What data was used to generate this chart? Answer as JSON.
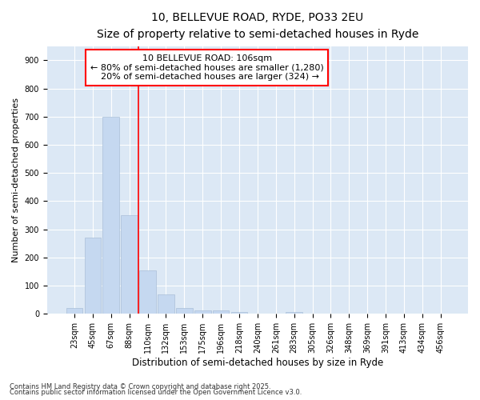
{
  "title1": "10, BELLEVUE ROAD, RYDE, PO33 2EU",
  "title2": "Size of property relative to semi-detached houses in Ryde",
  "xlabel": "Distribution of semi-detached houses by size in Ryde",
  "ylabel": "Number of semi-detached properties",
  "categories": [
    "23sqm",
    "45sqm",
    "67sqm",
    "88sqm",
    "110sqm",
    "132sqm",
    "153sqm",
    "175sqm",
    "196sqm",
    "218sqm",
    "240sqm",
    "261sqm",
    "283sqm",
    "305sqm",
    "326sqm",
    "348sqm",
    "369sqm",
    "391sqm",
    "413sqm",
    "434sqm",
    "456sqm"
  ],
  "values": [
    20,
    270,
    700,
    350,
    155,
    68,
    22,
    12,
    12,
    8,
    0,
    0,
    8,
    0,
    0,
    0,
    0,
    0,
    0,
    0,
    0
  ],
  "bar_color": "#c5d8f0",
  "bar_edge_color": "#aabfd8",
  "plot_bg_color": "#dce8f5",
  "fig_bg_color": "#ffffff",
  "vline_color": "red",
  "vline_x_index": 4,
  "annotation_text_line1": "10 BELLEVUE ROAD: 106sqm",
  "annotation_text_line2": "← 80% of semi-detached houses are smaller (1,280)",
  "annotation_text_line3": "  20% of semi-detached houses are larger (324) →",
  "annotation_box_color": "white",
  "annotation_box_edge": "red",
  "ylim": [
    0,
    950
  ],
  "yticks": [
    0,
    100,
    200,
    300,
    400,
    500,
    600,
    700,
    800,
    900
  ],
  "footer1": "Contains HM Land Registry data © Crown copyright and database right 2025.",
  "footer2": "Contains public sector information licensed under the Open Government Licence v3.0.",
  "title1_fontsize": 10,
  "title2_fontsize": 9,
  "tick_fontsize": 7,
  "xlabel_fontsize": 8.5,
  "ylabel_fontsize": 8,
  "annotation_fontsize": 8,
  "footer_fontsize": 6
}
